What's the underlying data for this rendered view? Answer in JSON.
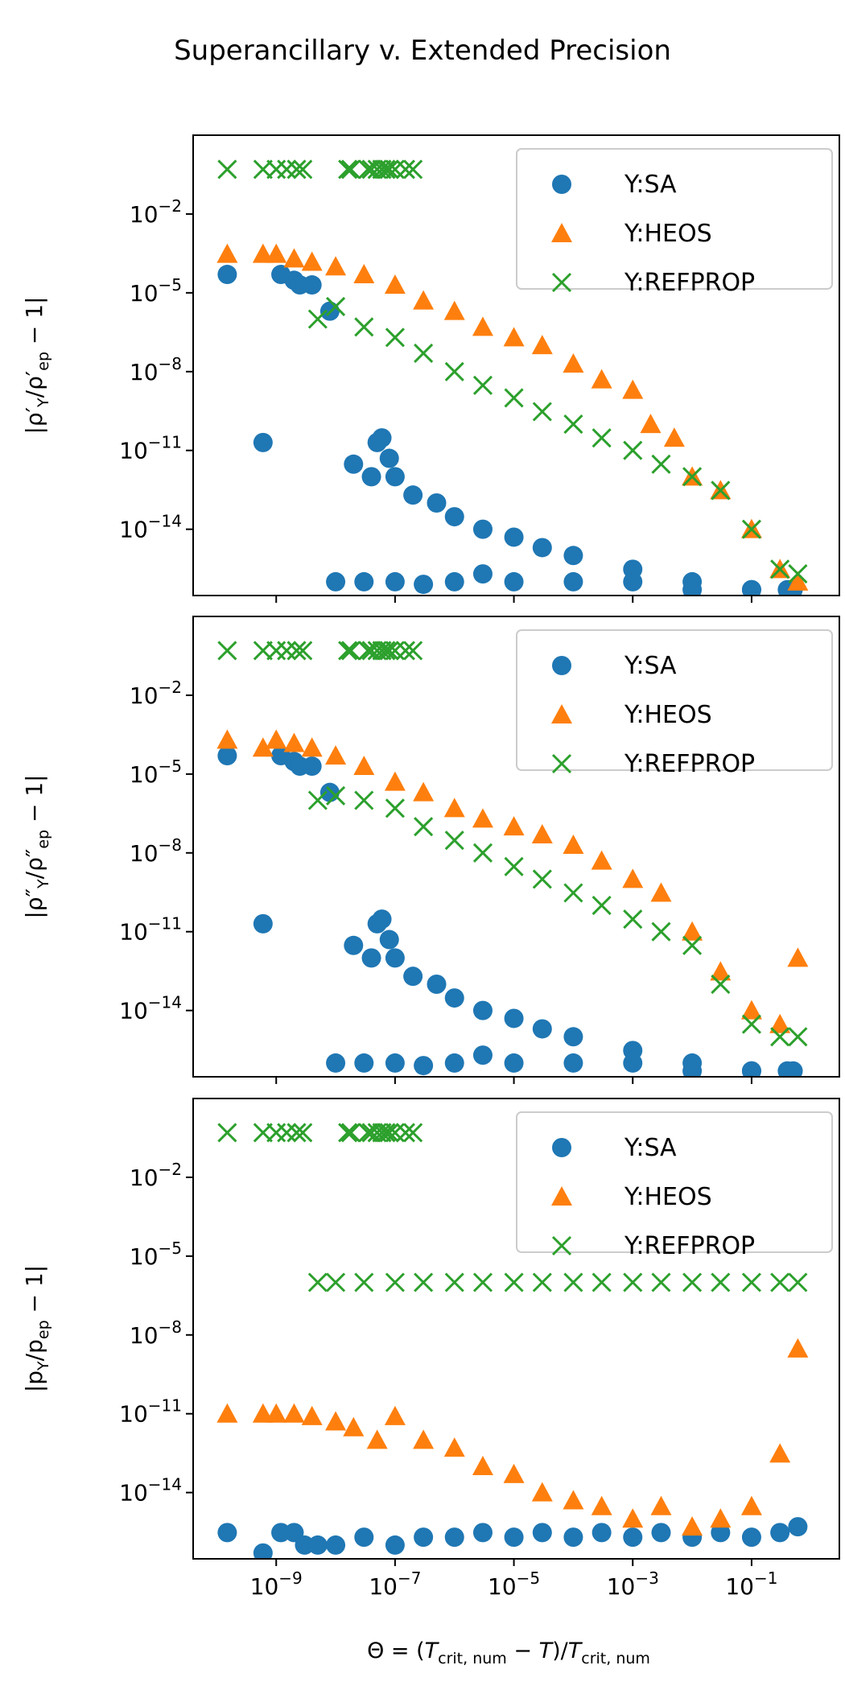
{
  "figure": {
    "title": "Superancillary v. Extended Precision",
    "xlabel": "Θ = (T_crit,num − T)/T_crit,num"
  },
  "colors": {
    "SA": "#1f77b4",
    "HEOS": "#ff7f0e",
    "REFPROP": "#2ca02c"
  },
  "chart_data": [
    {
      "type": "scatter",
      "ylabel": "|ρ'_Y/ρ'_ep − 1|",
      "xscale": "log",
      "yscale": "log",
      "xlim": [
        4e-11,
        3
      ],
      "ylim": [
        3e-17,
        10.0
      ],
      "xticks": [
        1e-09,
        1e-07,
        1e-05,
        0.001,
        0.1
      ],
      "xtick_labels": [
        "10^-9",
        "10^-7",
        "10^-5",
        "10^-3",
        "10^-1"
      ],
      "yticks": [
        1e-14,
        1e-11,
        1e-08,
        1e-05,
        0.01
      ],
      "ytick_labels": [
        "10^-14",
        "10^-11",
        "10^-8",
        "10^-5",
        "10^-2"
      ],
      "legend_position": "top-right",
      "series": [
        {
          "name": "Y:SA",
          "marker": "circle",
          "x": [
            1.5e-10,
            6e-10,
            1.2e-09,
            2e-09,
            2.5e-09,
            4e-09,
            8e-09,
            2e-08,
            4e-08,
            5e-08,
            6e-08,
            8e-08,
            1e-07,
            2e-07,
            5e-07,
            1e-06,
            3e-06,
            1e-05,
            3e-05,
            0.0001,
            0.001,
            0.01,
            0.1,
            0.5,
            1e-08,
            3e-08,
            1e-07,
            3e-07,
            1e-06,
            3e-06,
            1e-05,
            0.0001,
            0.001,
            0.01,
            0.1,
            0.4
          ],
          "y": [
            5e-05,
            2e-11,
            5e-05,
            3e-05,
            2e-05,
            2e-05,
            2e-06,
            3e-12,
            1e-12,
            2e-11,
            3e-11,
            5e-12,
            1e-12,
            2e-13,
            1e-13,
            3e-14,
            1e-14,
            5e-15,
            2e-15,
            1e-15,
            3e-16,
            1e-16,
            5e-17,
            5e-17,
            1e-16,
            1e-16,
            1e-16,
            8e-17,
            1e-16,
            2e-16,
            1e-16,
            1e-16,
            1e-16,
            5e-17,
            5e-17,
            5e-17
          ]
        },
        {
          "name": "Y:HEOS",
          "marker": "triangle",
          "x": [
            1.5e-10,
            6e-10,
            1e-09,
            2e-09,
            4e-09,
            1e-08,
            3e-08,
            1e-07,
            3e-07,
            1e-06,
            3e-06,
            1e-05,
            3e-05,
            0.0001,
            0.0003,
            0.001,
            0.002,
            0.005,
            0.01,
            0.03,
            0.1,
            0.3,
            0.6
          ],
          "y": [
            0.0003,
            0.0003,
            0.0003,
            0.0002,
            0.00015,
            0.0001,
            5e-05,
            2e-05,
            5e-06,
            2e-06,
            5e-07,
            2e-07,
            1e-07,
            2e-08,
            5e-09,
            2e-09,
            1e-10,
            3e-11,
            1e-12,
            3e-13,
            1e-14,
            3e-16,
            1e-16
          ]
        },
        {
          "name": "Y:REFPROP",
          "marker": "x",
          "x": [
            1.5e-10,
            6e-10,
            1e-09,
            1.5e-09,
            2.2e-09,
            2.8e-09,
            1.6e-08,
            1.8e-08,
            3.5e-08,
            4e-08,
            5e-08,
            6e-08,
            7e-08,
            8e-08,
            1e-07,
            1.5e-07,
            2e-07,
            5e-09,
            1e-08,
            3e-08,
            1e-07,
            3e-07,
            1e-06,
            3e-06,
            1e-05,
            3e-05,
            0.0001,
            0.0003,
            0.001,
            0.003,
            0.01,
            0.03,
            0.1,
            0.3,
            0.6
          ],
          "y": [
            0.5,
            0.5,
            0.5,
            0.5,
            0.5,
            0.5,
            0.5,
            0.5,
            0.5,
            0.5,
            0.5,
            0.5,
            0.5,
            0.5,
            0.5,
            0.5,
            0.5,
            1e-06,
            3e-06,
            5e-07,
            2e-07,
            5e-08,
            1e-08,
            3e-09,
            1e-09,
            3e-10,
            1e-10,
            3e-11,
            1e-11,
            3e-12,
            1e-12,
            3e-13,
            1e-14,
            3e-16,
            2e-16
          ]
        }
      ]
    },
    {
      "type": "scatter",
      "ylabel": "|ρ''_Y/ρ''_ep − 1|",
      "xscale": "log",
      "yscale": "log",
      "xlim": [
        4e-11,
        3
      ],
      "ylim": [
        3e-17,
        10.0
      ],
      "xticks": [
        1e-09,
        1e-07,
        1e-05,
        0.001,
        0.1
      ],
      "xtick_labels": [
        "10^-9",
        "10^-7",
        "10^-5",
        "10^-3",
        "10^-1"
      ],
      "yticks": [
        1e-14,
        1e-11,
        1e-08,
        1e-05,
        0.01
      ],
      "ytick_labels": [
        "10^-14",
        "10^-11",
        "10^-8",
        "10^-5",
        "10^-2"
      ],
      "legend_position": "top-right",
      "series": [
        {
          "name": "Y:SA",
          "marker": "circle",
          "x": [
            1.5e-10,
            6e-10,
            1.2e-09,
            2e-09,
            2.5e-09,
            4e-09,
            8e-09,
            2e-08,
            4e-08,
            5e-08,
            6e-08,
            8e-08,
            1e-07,
            2e-07,
            5e-07,
            1e-06,
            3e-06,
            1e-05,
            3e-05,
            0.0001,
            0.001,
            0.01,
            0.1,
            0.5,
            1e-08,
            3e-08,
            1e-07,
            3e-07,
            1e-06,
            3e-06,
            1e-05,
            0.0001,
            0.001,
            0.01,
            0.1,
            0.4
          ],
          "y": [
            5e-05,
            2e-11,
            5e-05,
            3e-05,
            2e-05,
            2e-05,
            2e-06,
            3e-12,
            1e-12,
            2e-11,
            3e-11,
            5e-12,
            1e-12,
            2e-13,
            1e-13,
            3e-14,
            1e-14,
            5e-15,
            2e-15,
            1e-15,
            3e-16,
            1e-16,
            5e-17,
            5e-17,
            1e-16,
            1e-16,
            1e-16,
            8e-17,
            1e-16,
            2e-16,
            1e-16,
            1e-16,
            1e-16,
            5e-17,
            5e-17,
            5e-17
          ]
        },
        {
          "name": "Y:HEOS",
          "marker": "triangle",
          "x": [
            1.5e-10,
            6e-10,
            1e-09,
            2e-09,
            4e-09,
            1e-08,
            3e-08,
            1e-07,
            3e-07,
            1e-06,
            3e-06,
            1e-05,
            3e-05,
            0.0001,
            0.0003,
            0.001,
            0.003,
            0.01,
            0.03,
            0.1,
            0.3,
            0.6
          ],
          "y": [
            0.0002,
            0.0001,
            0.0002,
            0.00015,
            0.0001,
            5e-05,
            2e-05,
            5e-06,
            2e-06,
            5e-07,
            2e-07,
            1e-07,
            5e-08,
            2e-08,
            5e-09,
            1e-09,
            3e-10,
            1e-11,
            3e-13,
            1e-14,
            3e-15,
            1e-12
          ]
        },
        {
          "name": "Y:REFPROP",
          "marker": "x",
          "x": [
            1.5e-10,
            6e-10,
            1e-09,
            1.5e-09,
            2.2e-09,
            2.8e-09,
            1.6e-08,
            1.8e-08,
            3.5e-08,
            4e-08,
            5e-08,
            6e-08,
            7e-08,
            8e-08,
            1e-07,
            1.5e-07,
            2e-07,
            5e-09,
            1e-08,
            3e-08,
            1e-07,
            3e-07,
            1e-06,
            3e-06,
            1e-05,
            3e-05,
            0.0001,
            0.0003,
            0.001,
            0.003,
            0.01,
            0.03,
            0.1,
            0.3,
            0.6
          ],
          "y": [
            0.5,
            0.5,
            0.5,
            0.5,
            0.5,
            0.5,
            0.5,
            0.5,
            0.5,
            0.5,
            0.5,
            0.5,
            0.5,
            0.5,
            0.5,
            0.5,
            0.5,
            1e-06,
            1.5e-06,
            1e-06,
            5e-07,
            1e-07,
            3e-08,
            1e-08,
            3e-09,
            1e-09,
            3e-10,
            1e-10,
            3e-11,
            1e-11,
            3e-12,
            1e-13,
            3e-15,
            1e-15,
            1e-15
          ]
        }
      ]
    },
    {
      "type": "scatter",
      "ylabel": "|p_Y/p_ep − 1|",
      "xscale": "log",
      "yscale": "log",
      "xlim": [
        4e-11,
        3
      ],
      "ylim": [
        3e-17,
        10.0
      ],
      "xticks": [
        1e-09,
        1e-07,
        1e-05,
        0.001,
        0.1
      ],
      "xtick_labels": [
        "10^-9",
        "10^-7",
        "10^-5",
        "10^-3",
        "10^-1"
      ],
      "yticks": [
        1e-14,
        1e-11,
        1e-08,
        1e-05,
        0.01
      ],
      "ytick_labels": [
        "10^-14",
        "10^-11",
        "10^-8",
        "10^-5",
        "10^-2"
      ],
      "legend_position": "top-right",
      "series": [
        {
          "name": "Y:SA",
          "marker": "circle",
          "x": [
            1.5e-10,
            6e-10,
            1.2e-09,
            2e-09,
            3e-09,
            5e-09,
            1e-08,
            3e-08,
            1e-07,
            3e-07,
            1e-06,
            3e-06,
            1e-05,
            3e-05,
            0.0001,
            0.0003,
            0.001,
            0.003,
            0.01,
            0.03,
            0.1,
            0.3,
            0.6
          ],
          "y": [
            3e-16,
            5e-17,
            3e-16,
            3e-16,
            1e-16,
            1e-16,
            1e-16,
            2e-16,
            1e-16,
            2e-16,
            2e-16,
            3e-16,
            2e-16,
            3e-16,
            2e-16,
            3e-16,
            2e-16,
            3e-16,
            2e-16,
            3e-16,
            2e-16,
            3e-16,
            5e-16
          ]
        },
        {
          "name": "Y:HEOS",
          "marker": "triangle",
          "x": [
            1.5e-10,
            6e-10,
            1e-09,
            2e-09,
            4e-09,
            1e-08,
            2e-08,
            5e-08,
            1e-07,
            3e-07,
            1e-06,
            3e-06,
            1e-05,
            3e-05,
            0.0001,
            0.0003,
            0.001,
            0.003,
            0.01,
            0.03,
            0.1,
            0.3,
            0.6
          ],
          "y": [
            1e-11,
            1e-11,
            1e-11,
            1e-11,
            8e-12,
            5e-12,
            3e-12,
            1e-12,
            8e-12,
            1e-12,
            5e-13,
            1e-13,
            5e-14,
            1e-14,
            5e-15,
            3e-15,
            1e-15,
            3e-15,
            5e-16,
            1e-15,
            3e-15,
            3e-13,
            3e-09
          ]
        },
        {
          "name": "Y:REFPROP",
          "marker": "x",
          "x": [
            1.5e-10,
            6e-10,
            1e-09,
            1.5e-09,
            2.2e-09,
            2.8e-09,
            1.6e-08,
            1.8e-08,
            3.5e-08,
            4e-08,
            5e-08,
            6e-08,
            7e-08,
            8e-08,
            1e-07,
            1.5e-07,
            2e-07,
            5e-09,
            1e-08,
            3e-08,
            1e-07,
            3e-07,
            1e-06,
            3e-06,
            1e-05,
            3e-05,
            0.0001,
            0.0003,
            0.001,
            0.003,
            0.01,
            0.03,
            0.1,
            0.3,
            0.6
          ],
          "y": [
            0.5,
            0.5,
            0.5,
            0.5,
            0.5,
            0.5,
            0.5,
            0.5,
            0.5,
            0.5,
            0.5,
            0.5,
            0.5,
            0.5,
            0.5,
            0.5,
            0.5,
            1e-06,
            1e-06,
            1e-06,
            1e-06,
            1e-06,
            1e-06,
            1e-06,
            1e-06,
            1e-06,
            1e-06,
            1e-06,
            1e-06,
            1e-06,
            1e-06,
            1e-06,
            1e-06,
            1e-06,
            1e-06
          ]
        }
      ]
    }
  ]
}
